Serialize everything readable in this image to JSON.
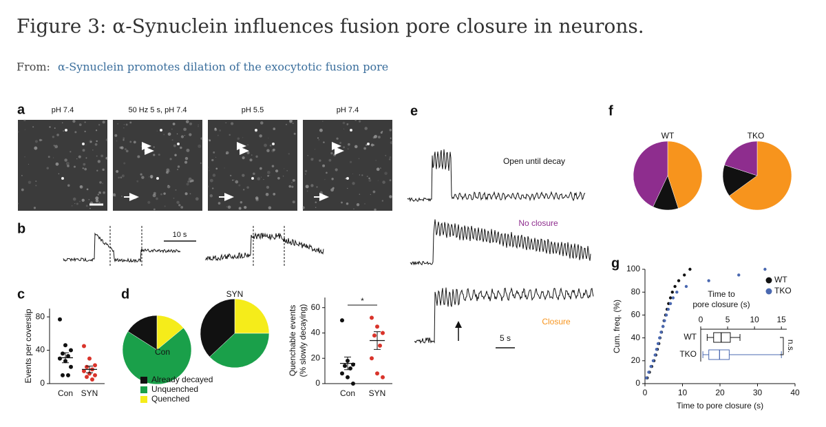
{
  "header": {
    "title": "Figure 3: α-Synuclein influences fusion pore closure in neurons.",
    "from_label": "From:",
    "from_link": "α-Synuclein promotes dilation of the exocytotic fusion pore"
  },
  "panel_a": {
    "letter": "a",
    "image_labels": [
      "pH 7.4",
      "50 Hz 5 s, pH 7.4",
      "pH 5.5",
      "pH 7.4"
    ]
  },
  "panel_b": {
    "letter": "b",
    "scale_label": "10 s"
  },
  "panel_e": {
    "letter": "e",
    "labels": [
      "Open until decay",
      "No closure",
      "Closure"
    ],
    "scale_label": "5 s"
  },
  "chart_data": [
    {
      "letter": "c",
      "type": "dot",
      "ylabel": [
        "Events per coverslip"
      ],
      "categories": [
        "Con",
        "SYN"
      ],
      "colors": [
        "#111111",
        "#d9342b"
      ],
      "values": [
        [
          77,
          46,
          40,
          36,
          33,
          30,
          27,
          20,
          10,
          10
        ],
        [
          45,
          30,
          22,
          20,
          17,
          15,
          12,
          10,
          8,
          5
        ]
      ],
      "means": [
        31,
        17
      ],
      "sems": [
        6,
        4
      ],
      "ylim": [
        0,
        90
      ],
      "yticks": [
        0,
        40,
        80
      ]
    },
    {
      "letter": "d",
      "type": "pie",
      "legend": [
        "Already decayed",
        "Unquenched",
        "Quenched"
      ],
      "colors": [
        "#111111",
        "#1aa04a",
        "#f5ec1a"
      ],
      "pies": [
        {
          "title": "Con",
          "values": [
            16,
            70,
            14
          ]
        },
        {
          "title": "SYN",
          "values": [
            37,
            38,
            25
          ]
        }
      ]
    },
    {
      "type": "dot",
      "ylabel": [
        "Quenchable events",
        "(% slowly decaying)"
      ],
      "categories": [
        "Con",
        "SYN"
      ],
      "colors": [
        "#111111",
        "#d9342b"
      ],
      "values": [
        [
          50,
          18,
          15,
          14,
          12,
          8,
          5,
          0
        ],
        [
          52,
          45,
          40,
          38,
          30,
          20,
          8,
          5
        ]
      ],
      "means": [
        16,
        34
      ],
      "sems": [
        5,
        7
      ],
      "ylim": [
        0,
        68
      ],
      "yticks": [
        0,
        20,
        40,
        60
      ],
      "significance": "*"
    },
    {
      "letter": "f",
      "type": "pie",
      "colors": [
        "#8e2d8e",
        "#111111",
        "#f7941d"
      ],
      "pies": [
        {
          "title": "WT",
          "values": [
            43,
            12,
            45
          ]
        },
        {
          "title": "TKO",
          "values": [
            20,
            15,
            65
          ]
        }
      ]
    },
    {
      "letter": "g",
      "type": "scatter",
      "xlabel": "Time to pore closure (s)",
      "ylabel": "Cum. freq. (%)",
      "xlim": [
        0,
        40
      ],
      "xticks": [
        0,
        10,
        20,
        30,
        40
      ],
      "ylim": [
        0,
        100
      ],
      "yticks": [
        0,
        20,
        40,
        60,
        80,
        100
      ],
      "legend_position": "upper right",
      "series": [
        {
          "name": "WT",
          "color": "#111111",
          "x": [
            0.6,
            1.2,
            1.8,
            2.4,
            2.9,
            3.3,
            3.7,
            4.0,
            4.4,
            4.8,
            5.1,
            5.5,
            5.9,
            6.3,
            6.8,
            7.3,
            8.0,
            9.0,
            10.5,
            12.0
          ],
          "values": [
            5,
            10,
            15,
            20,
            25,
            30,
            35,
            40,
            45,
            50,
            55,
            60,
            65,
            70,
            75,
            80,
            85,
            90,
            95,
            100
          ]
        },
        {
          "name": "TKO",
          "color": "#4a68b0",
          "x": [
            0.4,
            1.0,
            1.6,
            2.2,
            2.7,
            3.1,
            3.5,
            3.9,
            4.3,
            4.8,
            5.2,
            5.7,
            6.2,
            6.8,
            7.5,
            8.5,
            11.0,
            17.0,
            25.0,
            32.0
          ],
          "values": [
            5,
            10,
            15,
            20,
            25,
            30,
            35,
            40,
            45,
            50,
            55,
            60,
            65,
            70,
            75,
            80,
            85,
            90,
            95,
            100
          ]
        }
      ]
    },
    {
      "type": "box",
      "title": [
        "Time to",
        "pore closure (s)"
      ],
      "categories": [
        "WT",
        "TKO"
      ],
      "colors": [
        "#111111",
        "#4a68b0"
      ],
      "boxes": [
        {
          "min": 1.2,
          "q1": 2.4,
          "median": 3.8,
          "q3": 5.5,
          "max": 7.3
        },
        {
          "min": 0.4,
          "q1": 1.5,
          "median": 3.5,
          "q3": 5.3,
          "max": 15.0
        }
      ],
      "xlim": [
        0,
        16
      ],
      "xticks": [
        0,
        5,
        10,
        15
      ],
      "annotation": "n.s."
    }
  ]
}
